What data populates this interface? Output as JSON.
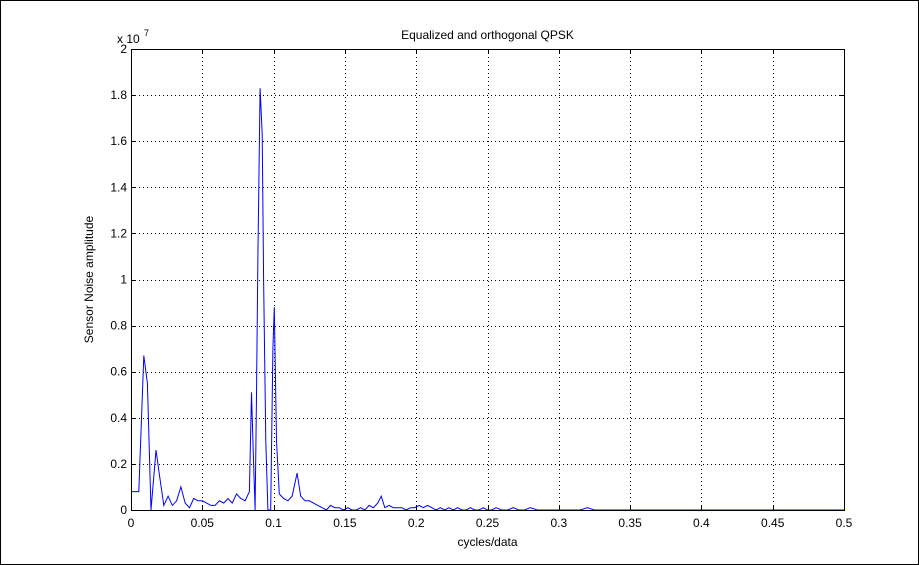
{
  "chart_data": {
    "type": "line",
    "title": "Equalized and orthogonal QPSK",
    "xlabel": "cycles/data",
    "ylabel": "Sensor Noise amplitude",
    "y_multiplier_base": "x 10",
    "y_multiplier_exponent": "7",
    "xlim": [
      0,
      0.5
    ],
    "ylim": [
      0,
      2
    ],
    "xticks": [
      0,
      0.05,
      0.1,
      0.15,
      0.2,
      0.25,
      0.3,
      0.35,
      0.4,
      0.45,
      0.5
    ],
    "xtick_labels": [
      "0",
      "0.05",
      "0.1",
      "0.15",
      "0.2",
      "0.25",
      "0.3",
      "0.35",
      "0.4",
      "0.45",
      "0.5"
    ],
    "yticks": [
      0,
      0.2,
      0.4,
      0.6,
      0.8,
      1,
      1.2,
      1.4,
      1.6,
      1.8,
      2
    ],
    "ytick_labels": [
      "0",
      "0.2",
      "0.4",
      "0.6",
      "0.8",
      "1",
      "1.2",
      "1.4",
      "1.6",
      "1.8",
      "2"
    ],
    "grid": true,
    "line_color": "#0000ff",
    "series": [
      {
        "x": [
          0,
          0.0055,
          0.009,
          0.0115,
          0.014,
          0.0175,
          0.02,
          0.023,
          0.026,
          0.029,
          0.032,
          0.035,
          0.038,
          0.041,
          0.044,
          0.047,
          0.05,
          0.053,
          0.056,
          0.059,
          0.062,
          0.065,
          0.068,
          0.071,
          0.074,
          0.077,
          0.08,
          0.083,
          0.0845,
          0.0855,
          0.087,
          0.088,
          0.089,
          0.0905,
          0.092,
          0.093,
          0.0945,
          0.096,
          0.098,
          0.0995,
          0.1005,
          0.102,
          0.104,
          0.107,
          0.11,
          0.113,
          0.1165,
          0.119,
          0.122,
          0.125,
          0.128,
          0.131,
          0.134,
          0.137,
          0.14,
          0.143,
          0.146,
          0.149,
          0.152,
          0.155,
          0.158,
          0.161,
          0.164,
          0.167,
          0.17,
          0.173,
          0.1755,
          0.178,
          0.181,
          0.184,
          0.187,
          0.19,
          0.193,
          0.196,
          0.199,
          0.202,
          0.205,
          0.208,
          0.211,
          0.214,
          0.217,
          0.22,
          0.223,
          0.226,
          0.229,
          0.232,
          0.235,
          0.238,
          0.241,
          0.244,
          0.247,
          0.25,
          0.253,
          0.256,
          0.26,
          0.264,
          0.268,
          0.272,
          0.276,
          0.28,
          0.285,
          0.29,
          0.295,
          0.3,
          0.305,
          0.31,
          0.315,
          0.32,
          0.325,
          0.33,
          0.335,
          0.34,
          0.345,
          0.35,
          0.355,
          0.36,
          0.365,
          0.37,
          0.38,
          0.39,
          0.4,
          0.41,
          0.42,
          0.43,
          0.44,
          0.45,
          0.46,
          0.47,
          0.48,
          0.49,
          0.5
        ],
        "y": [
          0.08,
          0.08,
          0.67,
          0.55,
          0.0,
          0.26,
          0.15,
          0.02,
          0.06,
          0.02,
          0.04,
          0.1,
          0.03,
          0.01,
          0.05,
          0.04,
          0.04,
          0.03,
          0.02,
          0.02,
          0.04,
          0.03,
          0.05,
          0.03,
          0.07,
          0.05,
          0.04,
          0.08,
          0.51,
          0.3,
          0.0,
          0.5,
          1.1,
          1.83,
          1.63,
          1.0,
          0.3,
          0.0,
          0.0,
          0.7,
          0.88,
          0.3,
          0.07,
          0.05,
          0.04,
          0.06,
          0.16,
          0.06,
          0.04,
          0.04,
          0.03,
          0.02,
          0.01,
          0.0,
          0.02,
          0.01,
          0.01,
          0.0,
          0.01,
          0.0,
          0.0,
          0.01,
          0.0,
          0.02,
          0.01,
          0.03,
          0.06,
          0.01,
          0.02,
          0.01,
          0.01,
          0.01,
          0.0,
          0.01,
          0.01,
          0.02,
          0.01,
          0.02,
          0.01,
          0.0,
          0.01,
          0.0,
          0.01,
          0.0,
          0.01,
          0.0,
          0.0,
          0.01,
          0.0,
          0.0,
          0.01,
          0.0,
          0.0,
          0.01,
          0.0,
          0.0,
          0.01,
          0.0,
          0.0,
          0.01,
          0.0,
          0.0,
          0.0,
          0.0,
          0.0,
          0.0,
          0.0,
          0.01,
          0.0,
          0.0,
          0.0,
          0.0,
          0.0,
          0.0,
          0.0,
          0.0,
          0.0,
          0.0,
          0.0,
          0.0,
          0.0,
          0.0,
          0.0,
          0.0,
          0.0,
          0.0,
          0.0,
          0.0,
          0.0,
          0.0,
          0.0
        ]
      }
    ]
  }
}
